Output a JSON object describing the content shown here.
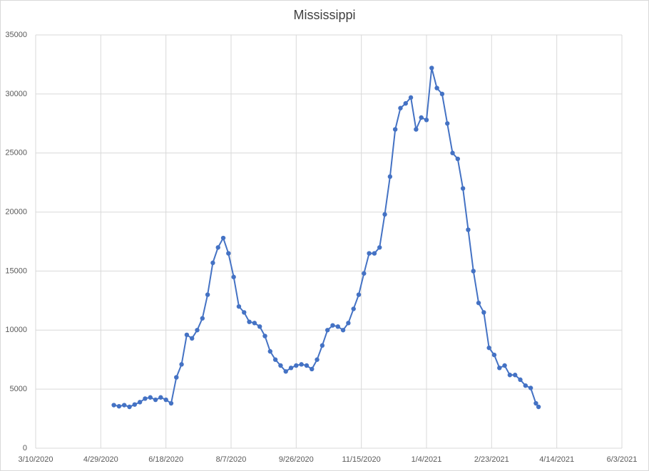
{
  "chart_data": {
    "type": "line",
    "title": "Mississippi",
    "color": "#4472c4",
    "grid": true,
    "x": [
      "2020-05-09",
      "2020-05-13",
      "2020-05-17",
      "2020-05-21",
      "2020-05-25",
      "2020-05-29",
      "2020-06-02",
      "2020-06-06",
      "2020-06-10",
      "2020-06-14",
      "2020-06-18",
      "2020-06-22",
      "2020-06-26",
      "2020-06-30",
      "2020-07-04",
      "2020-07-08",
      "2020-07-12",
      "2020-07-16",
      "2020-07-20",
      "2020-07-24",
      "2020-07-28",
      "2020-08-01",
      "2020-08-05",
      "2020-08-09",
      "2020-08-13",
      "2020-08-17",
      "2020-08-21",
      "2020-08-25",
      "2020-08-29",
      "2020-09-02",
      "2020-09-06",
      "2020-09-10",
      "2020-09-14",
      "2020-09-18",
      "2020-09-22",
      "2020-09-26",
      "2020-09-30",
      "2020-10-04",
      "2020-10-08",
      "2020-10-12",
      "2020-10-16",
      "2020-10-20",
      "2020-10-24",
      "2020-10-28",
      "2020-11-01",
      "2020-11-05",
      "2020-11-09",
      "2020-11-13",
      "2020-11-17",
      "2020-11-21",
      "2020-11-25",
      "2020-11-29",
      "2020-12-03",
      "2020-12-07",
      "2020-12-11",
      "2020-12-15",
      "2020-12-19",
      "2020-12-23",
      "2020-12-27",
      "2020-12-31",
      "2021-01-04",
      "2021-01-08",
      "2021-01-12",
      "2021-01-16",
      "2021-01-20",
      "2021-01-24",
      "2021-01-28",
      "2021-02-01",
      "2021-02-05",
      "2021-02-09",
      "2021-02-13",
      "2021-02-17",
      "2021-02-21",
      "2021-02-25",
      "2021-03-01",
      "2021-03-05",
      "2021-03-09",
      "2021-03-13",
      "2021-03-17",
      "2021-03-21",
      "2021-03-25",
      "2021-03-29",
      "2021-03-31"
    ],
    "values": [
      3650,
      3550,
      3650,
      3500,
      3700,
      3900,
      4200,
      4300,
      4100,
      4300,
      4100,
      3800,
      6000,
      7100,
      9600,
      9300,
      10000,
      11000,
      13000,
      15700,
      17000,
      17800,
      16500,
      14500,
      12000,
      11500,
      10700,
      10600,
      10300,
      9500,
      8200,
      7500,
      7000,
      6500,
      6800,
      7000,
      7100,
      7000,
      6700,
      7500,
      8700,
      10000,
      10400,
      10300,
      10000,
      10600,
      11800,
      13000,
      14800,
      16500,
      16500,
      17000,
      19800,
      23000,
      27000,
      28800,
      29200,
      29700,
      27000,
      28000,
      27800,
      32200,
      30500,
      30000,
      27500,
      25000,
      24500,
      22000,
      18500,
      15000,
      12300,
      11500,
      8500,
      7900,
      6800,
      7000,
      6200,
      6200,
      5800,
      5300,
      5100,
      3800,
      3500
    ],
    "xlim": [
      "2020-03-10",
      "2021-06-03"
    ],
    "xticks": [
      {
        "value": "2020-03-10",
        "label": "3/10/2020"
      },
      {
        "value": "2020-04-29",
        "label": "4/29/2020"
      },
      {
        "value": "2020-06-18",
        "label": "6/18/2020"
      },
      {
        "value": "2020-08-07",
        "label": "8/7/2020"
      },
      {
        "value": "2020-09-26",
        "label": "9/26/2020"
      },
      {
        "value": "2020-11-15",
        "label": "11/15/2020"
      },
      {
        "value": "2021-01-04",
        "label": "1/4/2021"
      },
      {
        "value": "2021-02-23",
        "label": "2/23/2021"
      },
      {
        "value": "2021-04-14",
        "label": "4/14/2021"
      },
      {
        "value": "2021-06-03",
        "label": "6/3/2021"
      }
    ],
    "ylim": [
      0,
      35000
    ],
    "yticks": [
      0,
      5000,
      10000,
      15000,
      20000,
      25000,
      30000,
      35000
    ]
  }
}
